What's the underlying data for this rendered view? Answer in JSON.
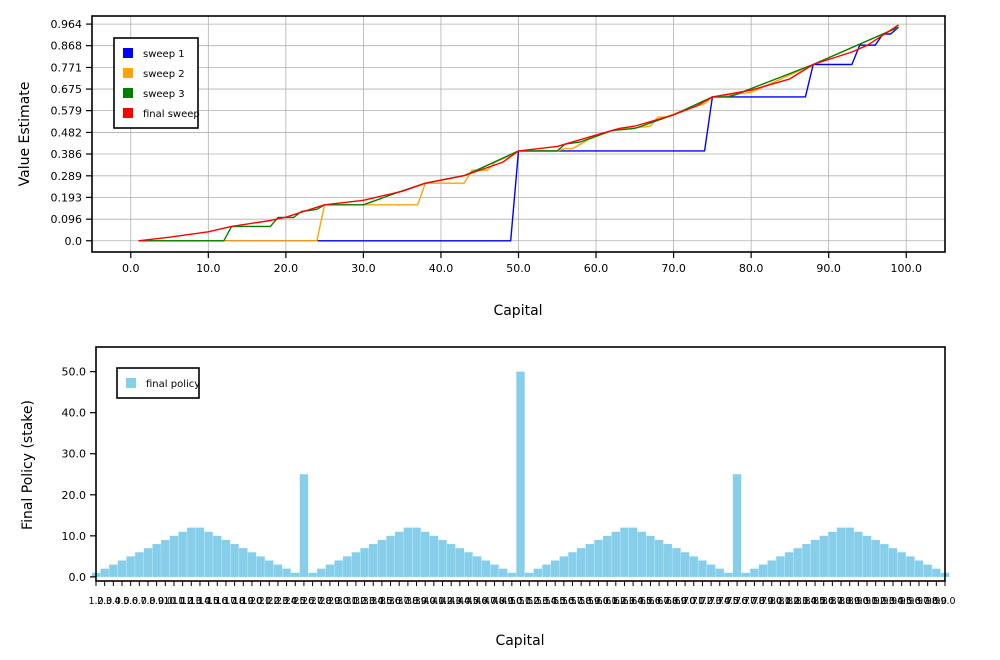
{
  "chart_data": [
    {
      "type": "line",
      "xlabel": "Capital",
      "ylabel": "Value Estimate",
      "xlim": [
        -5,
        105
      ],
      "ylim": [
        -0.05,
        1.0
      ],
      "xticks": [
        "0.0",
        "10.0",
        "20.0",
        "30.0",
        "40.0",
        "50.0",
        "60.0",
        "70.0",
        "80.0",
        "90.0",
        "100.0"
      ],
      "yticks": [
        "0.0",
        "0.096",
        "0.193",
        "0.289",
        "0.386",
        "0.482",
        "0.579",
        "0.675",
        "0.771",
        "0.868",
        "0.964"
      ],
      "grid": true,
      "legend_position": "top-left",
      "series": [
        {
          "name": "sweep 1",
          "color": "#0000ff",
          "points": [
            [
              1,
              0
            ],
            [
              49,
              0
            ],
            [
              50,
              0.4
            ],
            [
              74,
              0.4
            ],
            [
              75,
              0.64
            ],
            [
              87,
              0.64
            ],
            [
              88,
              0.784
            ],
            [
              93,
              0.784
            ],
            [
              94,
              0.87
            ],
            [
              96,
              0.87
            ],
            [
              97,
              0.92
            ],
            [
              98,
              0.92
            ],
            [
              99,
              0.95
            ]
          ]
        },
        {
          "name": "sweep 2",
          "color": "#ffa500",
          "points": [
            [
              1,
              0
            ],
            [
              24,
              0
            ],
            [
              25,
              0.16
            ],
            [
              37,
              0.16
            ],
            [
              38,
              0.256
            ],
            [
              43,
              0.256
            ],
            [
              44,
              0.314
            ],
            [
              46,
              0.314
            ],
            [
              47,
              0.35
            ],
            [
              49,
              0.38
            ],
            [
              50,
              0.4
            ],
            [
              55,
              0.4
            ],
            [
              56,
              0.41
            ],
            [
              57,
              0.41
            ],
            [
              59,
              0.45
            ],
            [
              62,
              0.49
            ],
            [
              67,
              0.51
            ],
            [
              68,
              0.55
            ],
            [
              69,
              0.55
            ],
            [
              72,
              0.59
            ],
            [
              74,
              0.61
            ],
            [
              75,
              0.64
            ],
            [
              80,
              0.66
            ],
            [
              88,
              0.784
            ],
            [
              99,
              0.95
            ]
          ]
        },
        {
          "name": "sweep 3",
          "color": "#008000",
          "points": [
            [
              1,
              0
            ],
            [
              12,
              0
            ],
            [
              13,
              0.064
            ],
            [
              18,
              0.064
            ],
            [
              19,
              0.104
            ],
            [
              21,
              0.104
            ],
            [
              22,
              0.13
            ],
            [
              24,
              0.14
            ],
            [
              25,
              0.16
            ],
            [
              30,
              0.16
            ],
            [
              34,
              0.21
            ],
            [
              38,
              0.256
            ],
            [
              43,
              0.29
            ],
            [
              45,
              0.32
            ],
            [
              50,
              0.4
            ],
            [
              55,
              0.4
            ],
            [
              56,
              0.43
            ],
            [
              58,
              0.44
            ],
            [
              62,
              0.49
            ],
            [
              65,
              0.5
            ],
            [
              70,
              0.56
            ],
            [
              75,
              0.64
            ],
            [
              77,
              0.64
            ],
            [
              78,
              0.65
            ],
            [
              88,
              0.784
            ],
            [
              99,
              0.95
            ]
          ]
        },
        {
          "name": "final sweep",
          "color": "#ff0000",
          "points": [
            [
              1,
              0
            ],
            [
              5,
              0.016
            ],
            [
              10,
              0.04
            ],
            [
              13,
              0.064
            ],
            [
              18,
              0.09
            ],
            [
              20,
              0.105
            ],
            [
              25,
              0.16
            ],
            [
              30,
              0.18
            ],
            [
              35,
              0.22
            ],
            [
              38,
              0.256
            ],
            [
              43,
              0.29
            ],
            [
              48,
              0.35
            ],
            [
              50,
              0.4
            ],
            [
              55,
              0.42
            ],
            [
              60,
              0.47
            ],
            [
              63,
              0.5
            ],
            [
              65,
              0.51
            ],
            [
              70,
              0.56
            ],
            [
              73,
              0.6
            ],
            [
              75,
              0.64
            ],
            [
              80,
              0.67
            ],
            [
              85,
              0.72
            ],
            [
              88,
              0.784
            ],
            [
              93,
              0.84
            ],
            [
              95,
              0.87
            ],
            [
              99,
              0.96
            ]
          ]
        }
      ]
    },
    {
      "type": "bar",
      "xlabel": "Capital",
      "ylabel": "Final Policy (stake)",
      "ylim": [
        -1,
        56
      ],
      "xticks_first": "1.0",
      "xticks_last": "99.0",
      "yticks": [
        "0.0",
        "10.0",
        "20.0",
        "30.0",
        "40.0",
        "50.0"
      ],
      "grid": false,
      "legend_position": "top-left",
      "series": [
        {
          "name": "final policy",
          "color": "#87ceeb",
          "categories": [
            1,
            2,
            3,
            4,
            5,
            6,
            7,
            8,
            9,
            10,
            11,
            12,
            13,
            14,
            15,
            16,
            17,
            18,
            19,
            20,
            21,
            22,
            23,
            24,
            25,
            26,
            27,
            28,
            29,
            30,
            31,
            32,
            33,
            34,
            35,
            36,
            37,
            38,
            39,
            40,
            41,
            42,
            43,
            44,
            45,
            46,
            47,
            48,
            49,
            50,
            51,
            52,
            53,
            54,
            55,
            56,
            57,
            58,
            59,
            60,
            61,
            62,
            63,
            64,
            65,
            66,
            67,
            68,
            69,
            70,
            71,
            72,
            73,
            74,
            75,
            76,
            77,
            78,
            79,
            80,
            81,
            82,
            83,
            84,
            85,
            86,
            87,
            88,
            89,
            90,
            91,
            92,
            93,
            94,
            95,
            96,
            97,
            98,
            99
          ],
          "values": [
            1,
            2,
            3,
            4,
            5,
            6,
            7,
            8,
            9,
            10,
            11,
            12,
            12,
            11,
            10,
            9,
            8,
            7,
            6,
            5,
            4,
            3,
            2,
            1,
            25,
            1,
            2,
            3,
            4,
            5,
            6,
            7,
            8,
            9,
            10,
            11,
            12,
            12,
            11,
            10,
            9,
            8,
            7,
            6,
            5,
            4,
            3,
            2,
            1,
            50,
            1,
            2,
            3,
            4,
            5,
            6,
            7,
            8,
            9,
            10,
            11,
            12,
            12,
            11,
            10,
            9,
            8,
            7,
            6,
            5,
            4,
            3,
            2,
            1,
            25,
            1,
            2,
            3,
            4,
            5,
            6,
            7,
            8,
            9,
            10,
            11,
            12,
            12,
            11,
            10,
            9,
            8,
            7,
            6,
            5,
            4,
            3,
            2,
            1
          ]
        }
      ]
    }
  ]
}
